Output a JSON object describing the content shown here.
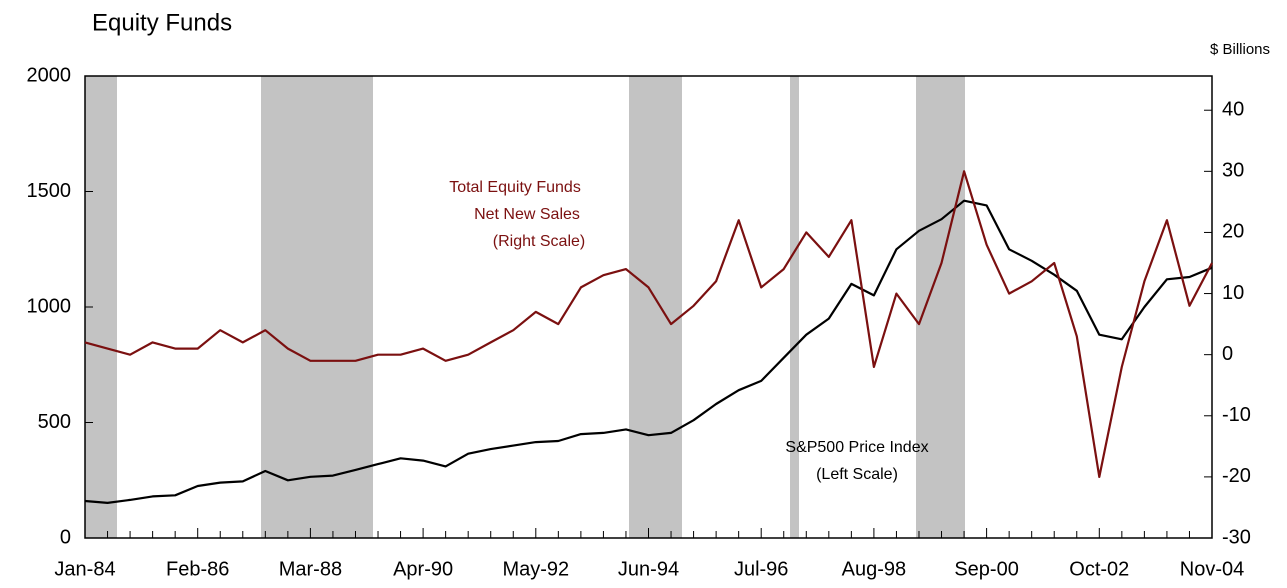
{
  "chart_data": {
    "type": "line",
    "title": "Equity Funds",
    "y2_axis_label": "$ Billions",
    "categories": [
      "Jan-84",
      null,
      null,
      null,
      null,
      "Feb-86",
      null,
      null,
      null,
      null,
      "Mar-88",
      null,
      null,
      null,
      null,
      "Apr-90",
      null,
      null,
      null,
      null,
      "May-92",
      null,
      null,
      null,
      null,
      "Jun-94",
      null,
      null,
      null,
      null,
      "Jul-96",
      null,
      null,
      null,
      null,
      "Aug-98",
      null,
      null,
      null,
      null,
      "Sep-00",
      null,
      null,
      null,
      null,
      "Oct-02",
      null,
      null,
      null,
      null,
      "Nov-04"
    ],
    "series": [
      {
        "name": "S&P500 Price Index",
        "color": "#000000",
        "axis": "y",
        "values": [
          160,
          152,
          165,
          180,
          185,
          225,
          240,
          245,
          290,
          250,
          265,
          270,
          295,
          320,
          345,
          335,
          310,
          365,
          385,
          400,
          415,
          420,
          450,
          455,
          470,
          445,
          455,
          510,
          580,
          640,
          680,
          780,
          880,
          950,
          1100,
          1050,
          1250,
          1330,
          1380,
          1460,
          1440,
          1250,
          1200,
          1140,
          1070,
          880,
          860,
          1000,
          1120,
          1130,
          1170
        ]
      },
      {
        "name": "Total Equity Funds Net New Sales",
        "color": "#7b1010",
        "axis": "y2",
        "values": [
          2,
          1,
          0,
          2,
          1,
          1,
          4,
          2,
          4,
          1,
          -1,
          -1,
          -1,
          0,
          0,
          1,
          -1,
          0,
          2,
          4,
          7,
          5,
          11,
          13,
          14,
          11,
          5,
          8,
          12,
          22,
          11,
          14,
          20,
          16,
          22,
          -2,
          10,
          5,
          15,
          30,
          18,
          10,
          12,
          15,
          3,
          -20,
          -2,
          12,
          22,
          8,
          15
        ]
      }
    ],
    "annotations": [
      {
        "series": 1,
        "lines": [
          "Total Equity Funds",
          "Net New Sales",
          "(Right Scale)"
        ]
      },
      {
        "series": 0,
        "lines": [
          "S&P500 Price Index",
          "(Left Scale)"
        ]
      }
    ],
    "ylim": [
      0,
      2000
    ],
    "yticks": [
      0,
      500,
      1000,
      1500,
      2000
    ],
    "y2lim": [
      -30,
      45.6
    ],
    "y2ticks": [
      -30,
      -20,
      -10,
      0,
      10,
      20,
      30,
      40
    ]
  }
}
